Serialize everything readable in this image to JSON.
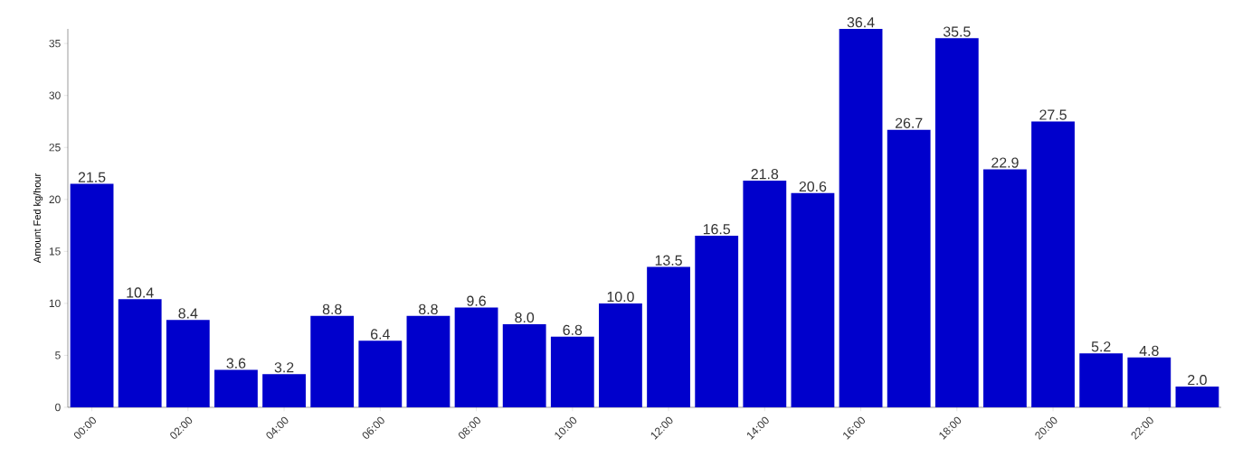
{
  "chart_data": {
    "type": "bar",
    "ylabel": "Amount Fed kg/hour",
    "categories": [
      "00:00",
      null,
      "02:00",
      null,
      "04:00",
      null,
      "06:00",
      null,
      "08:00",
      null,
      "10:00",
      null,
      "12:00",
      null,
      "14:00",
      null,
      "16:00",
      null,
      "18:00",
      null,
      "20:00",
      null,
      "22:00",
      null
    ],
    "values": [
      21.5,
      10.4,
      8.4,
      3.6,
      3.2,
      8.8,
      6.4,
      8.8,
      9.6,
      8.0,
      6.8,
      10.0,
      13.5,
      16.5,
      21.8,
      20.6,
      36.4,
      26.7,
      35.5,
      22.9,
      27.5,
      5.2,
      4.8,
      2.0
    ],
    "value_labels": [
      "21.5",
      "10.4",
      "8.4",
      "3.6",
      "3.2",
      "8.8",
      "6.4",
      "8.8",
      "9.6",
      "8.0",
      "6.8",
      "10.0",
      "13.5",
      "16.5",
      "21.8",
      "20.6",
      "36.4",
      "26.7",
      "35.5",
      "22.9",
      "27.5",
      "5.2",
      "4.8",
      "2.0"
    ],
    "color": "#0000cc",
    "ylim": [
      0,
      36.4
    ],
    "yticks": [
      0,
      5,
      10,
      15,
      20,
      25,
      30,
      35
    ],
    "grid": false
  }
}
